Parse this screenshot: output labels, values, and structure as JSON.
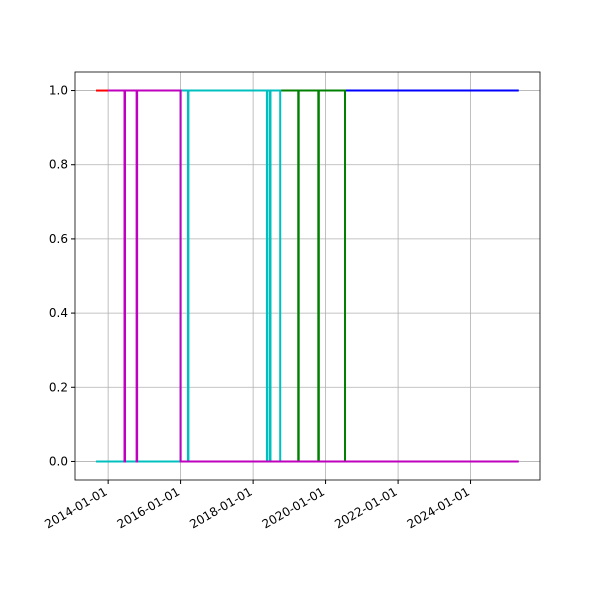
{
  "chart_data": {
    "type": "line",
    "step": "post",
    "grid": true,
    "xlim": [
      "2013-02-01",
      "2025-12-01"
    ],
    "xticks": [
      "2014-01-01",
      "2016-01-01",
      "2018-01-01",
      "2020-01-01",
      "2022-01-01",
      "2024-01-01"
    ],
    "ylim": [
      -0.05,
      1.05
    ],
    "yticks": [
      {
        "value": 0,
        "label": "0.0"
      },
      0.2,
      0.4,
      0.6,
      0.8,
      {
        "value": 1,
        "label": "1.0"
      }
    ],
    "series": [
      {
        "color": "#ff0000",
        "x": [
          "2013-09-01",
          "2014-01-01"
        ],
        "values": [
          1,
          1
        ]
      },
      {
        "color": "#0000ff",
        "x": [
          "2020-07-15",
          "2025-05-01"
        ],
        "values": [
          1,
          1
        ]
      },
      {
        "color": "#008000",
        "x": [
          "2018-10-01",
          "2019-04-01",
          "2019-04-05",
          "2019-10-20",
          "2019-10-25",
          "2020-07-15"
        ],
        "values": [
          1,
          0,
          1,
          0,
          1,
          0
        ]
      },
      {
        "color": "#00bfbf",
        "x": [
          "2013-09-01",
          "2016-01-01",
          "2016-03-15",
          "2016-03-20",
          "2018-05-20",
          "2018-05-25",
          "2018-06-20",
          "2018-06-25",
          "2018-10-01"
        ],
        "values": [
          0,
          1,
          0,
          1,
          0,
          1,
          0,
          1,
          0
        ]
      },
      {
        "color": "#bf00bf",
        "x": [
          "2014-01-01",
          "2014-06-15",
          "2014-06-20",
          "2014-10-15",
          "2014-10-20",
          "2016-01-01",
          "2025-05-01"
        ],
        "values": [
          1,
          0,
          1,
          0,
          1,
          0,
          0
        ]
      }
    ]
  }
}
